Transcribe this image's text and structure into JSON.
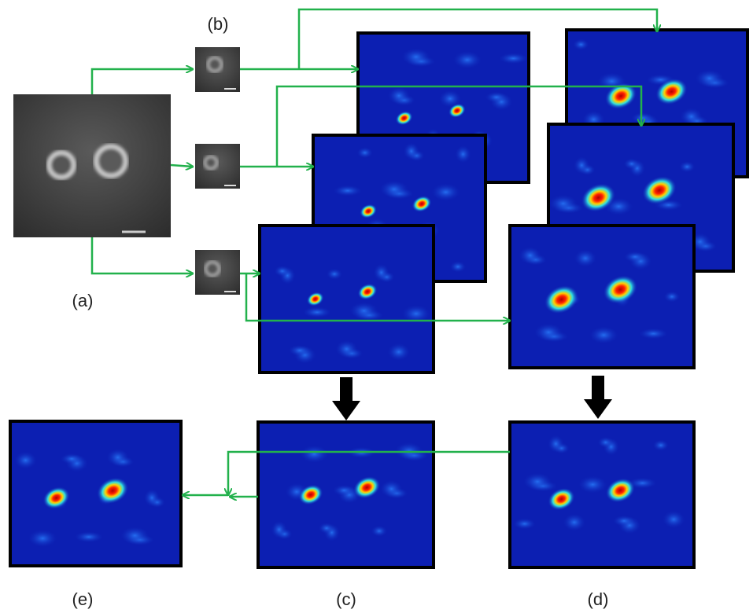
{
  "labels": {
    "a": "(a)",
    "b": "(b)",
    "c": "(c)",
    "d": "(d)",
    "e": "(e)"
  }
}
